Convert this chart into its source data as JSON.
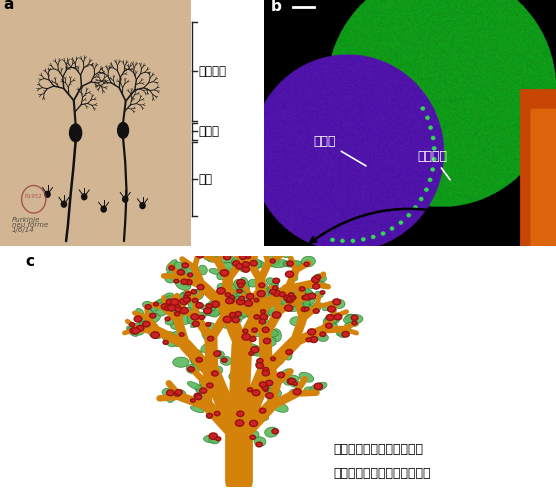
{
  "panel_a_label": "a",
  "panel_b_label": "b",
  "panel_c_label": "c",
  "label_jujo": "樹状突起",
  "label_saibo": "細胞体",
  "label_jikusaku": "軸索",
  "label_saibo_b": "細胞体",
  "label_jujo_b": "樹状突起",
  "label_synapse": "樹状突起におけるシナプス",
  "label_synapse2": "（神経細胞同士のつながり）",
  "bg_color": "#ffffff",
  "panel_a_bg": "#d4b896",
  "panel_b_bg": "#000000",
  "panel_c_bg": "#ffffff",
  "label_font_size": 8.5,
  "panel_label_font_size": 11,
  "text_color_white": "#ffffff",
  "text_color_black": "#000000",
  "orange_color": "#D4820A",
  "green_color": "#5cb85c",
  "red_color": "#cc2222"
}
